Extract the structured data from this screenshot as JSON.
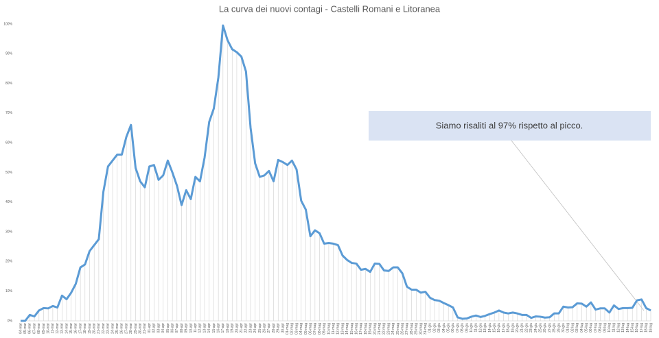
{
  "chart_data": {
    "type": "line",
    "title": "La curva dei nuovi contagi - Castelli Romani e Litoranea",
    "annotation": "Siamo risaliti al 97% rispetto al picco.",
    "categories": [
      "04-mar",
      "05-mar",
      "06-mar",
      "07-mar",
      "08-mar",
      "09-mar",
      "10-mar",
      "11-mar",
      "12-mar",
      "13-mar",
      "14-mar",
      "15-mar",
      "16-mar",
      "17-mar",
      "18-mar",
      "19-mar",
      "20-mar",
      "21-mar",
      "22-mar",
      "23-mar",
      "24-mar",
      "25-mar",
      "26-mar",
      "27-mar",
      "28-mar",
      "29-mar",
      "30-mar",
      "31-mar",
      "01-apr",
      "02-apr",
      "03-apr",
      "04-apr",
      "05-apr",
      "06-apr",
      "07-apr",
      "08-apr",
      "09-apr",
      "10-apr",
      "11-apr",
      "12-apr",
      "13-apr",
      "14-apr",
      "15-apr",
      "16-apr",
      "17-apr",
      "18-apr",
      "19-apr",
      "20-apr",
      "21-apr",
      "22-apr",
      "23-apr",
      "24-apr",
      "25-apr",
      "26-apr",
      "27-apr",
      "28-apr",
      "29-apr",
      "30-apr",
      "01-mag",
      "02-mag",
      "03-mag",
      "04-mag",
      "05-mag",
      "06-mag",
      "07-mag",
      "08-mag",
      "09-mag",
      "10-mag",
      "11-mag",
      "12-mag",
      "13-mag",
      "14-mag",
      "15-mag",
      "16-mag",
      "17-mag",
      "18-mag",
      "19-mag",
      "20-mag",
      "21-mag",
      "22-mag",
      "23-mag",
      "24-mag",
      "25-mag",
      "26-mag",
      "27-mag",
      "28-mag",
      "29-mag",
      "30-mag",
      "31-mag",
      "01-giu",
      "02-giu",
      "03-giu",
      "04-giu",
      "05-giu",
      "06-giu",
      "07-giu",
      "08-giu",
      "09-giu",
      "10-giu",
      "11-giu",
      "12-giu",
      "13-giu",
      "14-giu",
      "15-giu",
      "16-giu",
      "17-giu",
      "18-giu",
      "19-giu",
      "20-giu",
      "21-giu",
      "22-giu",
      "23-giu",
      "24-giu",
      "25-giu",
      "26-giu",
      "27-giu",
      "28-giu",
      "29-giu",
      "30-giu",
      "01-lug",
      "02-lug",
      "03-lug",
      "04-lug",
      "05-lug",
      "06-lug",
      "07-lug",
      "08-lug",
      "09-lug",
      "10-lug",
      "11-lug",
      "12-lug",
      "13-lug",
      "14-lug",
      "15-lug",
      "16-lug",
      "17-lug",
      "18-lug",
      "19-lug"
    ],
    "series": [
      {
        "name": "Nuovi contagi",
        "color": "#5b9bd5",
        "values": [
          0,
          0,
          2,
          1.5,
          3.5,
          4.3,
          4.2,
          5,
          4.5,
          8.5,
          7.3,
          9.5,
          12.5,
          18,
          19,
          23.5,
          25.5,
          27.5,
          43.5,
          52,
          54,
          56,
          56,
          62,
          66,
          51.5,
          47,
          45,
          52,
          52.5,
          47.5,
          49,
          54,
          50,
          45.5,
          39,
          44,
          41,
          48.5,
          47,
          55,
          67,
          71.5,
          82,
          99.5,
          94.5,
          91.5,
          90.5,
          89,
          84,
          65,
          53,
          48.5,
          49,
          50.5,
          47,
          54.2,
          53.5,
          52.5,
          54,
          51,
          40.5,
          37.5,
          28.5,
          30.5,
          29.5,
          26,
          26.2,
          26,
          25.5,
          22,
          20.5,
          19.5,
          19.3,
          17.2,
          17.5,
          16.5,
          19.3,
          19.2,
          17,
          16.8,
          18,
          18,
          16,
          11.5,
          10.5,
          10.5,
          9.5,
          9.8,
          7.8,
          7,
          6.8,
          6,
          5.3,
          4.5,
          1.2,
          0.7,
          0.8,
          1.4,
          1.8,
          1.3,
          1.7,
          2.3,
          2.8,
          3.5,
          2.8,
          2.5,
          2.8,
          2.5,
          2,
          2,
          1,
          1.5,
          1.4,
          1.1,
          1.2,
          2.5,
          2.5,
          4.8,
          4.5,
          4.6,
          5.9,
          5.8,
          4.8,
          6.2,
          3.8,
          4.2,
          4.2,
          2.8,
          5.2,
          4,
          4.3,
          4.3,
          4.4,
          6.9,
          7.2,
          4.3,
          3.5
        ]
      }
    ],
    "ylim": [
      0,
      100
    ],
    "yticks": [
      {
        "value": 0,
        "label": "0%"
      },
      {
        "value": 10,
        "label": "10%"
      },
      {
        "value": 20,
        "label": "20%"
      },
      {
        "value": 30,
        "label": "30%"
      },
      {
        "value": 40,
        "label": "40%"
      },
      {
        "value": 50,
        "label": "50%"
      },
      {
        "value": 60,
        "label": "60%"
      },
      {
        "value": 70,
        "label": "70%"
      },
      {
        "value": 80,
        "label": "80%"
      },
      {
        "value": 90,
        "label": "90%"
      },
      {
        "value": 100,
        "label": "100%"
      }
    ],
    "drop_lines": true
  }
}
